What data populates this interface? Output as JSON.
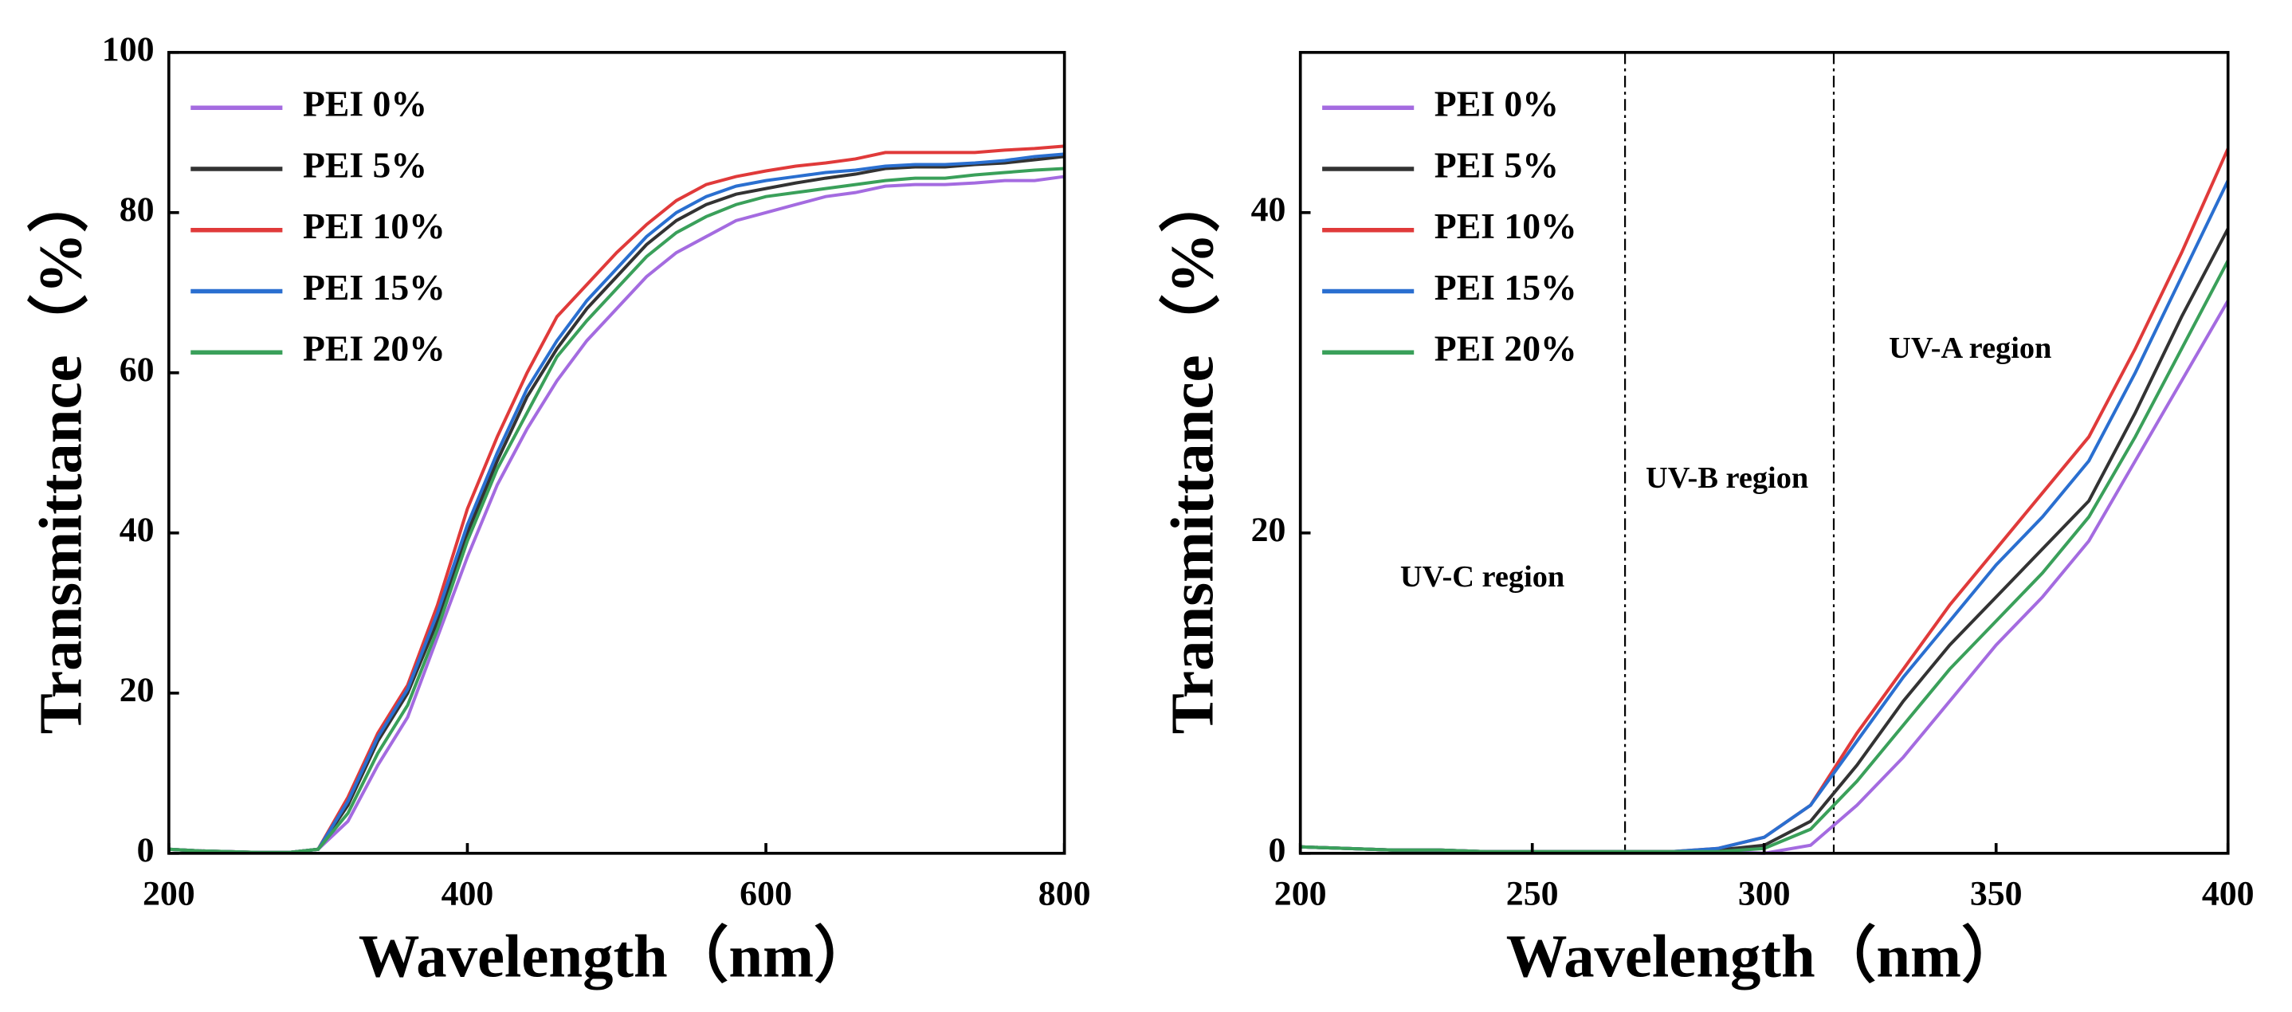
{
  "chart_data": [
    {
      "type": "line",
      "x_label": "Wavelength（nm）",
      "y_label": "Transmittance（%）",
      "xlim": [
        200,
        800
      ],
      "ylim": [
        0,
        100
      ],
      "xticks": [
        200,
        400,
        600,
        800
      ],
      "yticks": [
        0,
        20,
        40,
        60,
        80,
        100
      ],
      "legend": "upper left",
      "x": [
        200,
        220,
        240,
        260,
        280,
        300,
        320,
        340,
        360,
        380,
        400,
        420,
        440,
        460,
        480,
        500,
        520,
        540,
        560,
        580,
        600,
        620,
        640,
        660,
        680,
        700,
        720,
        740,
        760,
        780,
        800
      ],
      "series": [
        {
          "name": "PEI 0%",
          "color": "#a46be0",
          "values": [
            0.5,
            0.3,
            0.2,
            0.1,
            0.1,
            0.5,
            4,
            11,
            17,
            27,
            37,
            46,
            53,
            59,
            64,
            68,
            72,
            75,
            77,
            79,
            80,
            81,
            82,
            82.5,
            83.3,
            83.5,
            83.5,
            83.7,
            84,
            84,
            84.5
          ]
        },
        {
          "name": "PEI 5%",
          "color": "#333333",
          "values": [
            0.5,
            0.3,
            0.2,
            0.1,
            0.1,
            0.5,
            6,
            14,
            20,
            29,
            40,
            49,
            57,
            63,
            68,
            72,
            76,
            79,
            81,
            82.3,
            83,
            83.7,
            84.3,
            84.8,
            85.5,
            85.7,
            85.7,
            86,
            86.2,
            86.6,
            87
          ]
        },
        {
          "name": "PEI 10%",
          "color": "#e03a3a",
          "values": [
            0.5,
            0.3,
            0.2,
            0.1,
            0.1,
            0.5,
            7,
            15,
            21,
            31,
            43,
            52,
            60,
            67,
            71,
            75,
            78.5,
            81.5,
            83.5,
            84.5,
            85.2,
            85.8,
            86.2,
            86.7,
            87.5,
            87.5,
            87.5,
            87.5,
            87.8,
            88,
            88.3
          ]
        },
        {
          "name": "PEI 15%",
          "color": "#2a6fd0",
          "values": [
            0.5,
            0.3,
            0.2,
            0.1,
            0.1,
            0.5,
            6.5,
            14.5,
            20.5,
            30,
            41,
            50,
            58,
            64,
            69,
            73,
            77,
            80,
            82,
            83.3,
            84,
            84.5,
            85,
            85.3,
            85.8,
            86,
            86,
            86.2,
            86.5,
            87,
            87.3
          ]
        },
        {
          "name": "PEI 20%",
          "color": "#3aa05a",
          "values": [
            0.5,
            0.3,
            0.2,
            0.1,
            0.1,
            0.5,
            5,
            12.5,
            18.5,
            28,
            39,
            48,
            55,
            62,
            66.5,
            70.5,
            74.5,
            77.5,
            79.5,
            81,
            82,
            82.5,
            83,
            83.5,
            84,
            84.3,
            84.3,
            84.7,
            85,
            85.3,
            85.5
          ]
        }
      ]
    },
    {
      "type": "line",
      "x_label": "Wavelength（nm）",
      "y_label": "Transmittance（%）",
      "xlim": [
        200,
        400
      ],
      "ylim": [
        0,
        50
      ],
      "xticks": [
        200,
        250,
        300,
        350,
        400
      ],
      "yticks": [
        0,
        20,
        40
      ],
      "legend": "upper left",
      "vlines": [
        270,
        315
      ],
      "annotations": [
        "UV-C region",
        "UV-B region",
        "UV-A region"
      ],
      "x": [
        200,
        210,
        220,
        230,
        240,
        250,
        260,
        270,
        280,
        290,
        300,
        310,
        320,
        330,
        340,
        350,
        360,
        370,
        380,
        390,
        400
      ],
      "series": [
        {
          "name": "PEI 0%",
          "color": "#a46be0",
          "values": [
            0.4,
            0.3,
            0.2,
            0.2,
            0.1,
            0.1,
            0.1,
            0.1,
            0.1,
            0.1,
            0,
            0.5,
            3,
            6,
            9.5,
            13,
            16,
            19.5,
            24.5,
            29.5,
            34.5
          ]
        },
        {
          "name": "PEI 5%",
          "color": "#333333",
          "values": [
            0.4,
            0.3,
            0.2,
            0.2,
            0.1,
            0.1,
            0.1,
            0.1,
            0.1,
            0.2,
            0.5,
            2,
            5.5,
            9.5,
            13,
            16,
            19,
            22,
            27.5,
            33.5,
            39
          ]
        },
        {
          "name": "PEI 10%",
          "color": "#e03a3a",
          "values": [
            0.4,
            0.3,
            0.2,
            0.2,
            0.1,
            0.1,
            0.1,
            0.1,
            0.1,
            0.3,
            1,
            3,
            7.5,
            11.5,
            15.5,
            19,
            22.5,
            26,
            31.5,
            37.5,
            44
          ]
        },
        {
          "name": "PEI 15%",
          "color": "#2a6fd0",
          "values": [
            0.4,
            0.3,
            0.2,
            0.2,
            0.1,
            0.1,
            0.1,
            0.1,
            0.1,
            0.3,
            1,
            3,
            7,
            11,
            14.5,
            18,
            21,
            24.5,
            30,
            36,
            42
          ]
        },
        {
          "name": "PEI 20%",
          "color": "#3aa05a",
          "values": [
            0.4,
            0.3,
            0.2,
            0.2,
            0.1,
            0.1,
            0.1,
            0.1,
            0.1,
            0.1,
            0.3,
            1.5,
            4.5,
            8,
            11.5,
            14.5,
            17.5,
            21,
            26,
            31.5,
            37
          ]
        }
      ]
    }
  ]
}
